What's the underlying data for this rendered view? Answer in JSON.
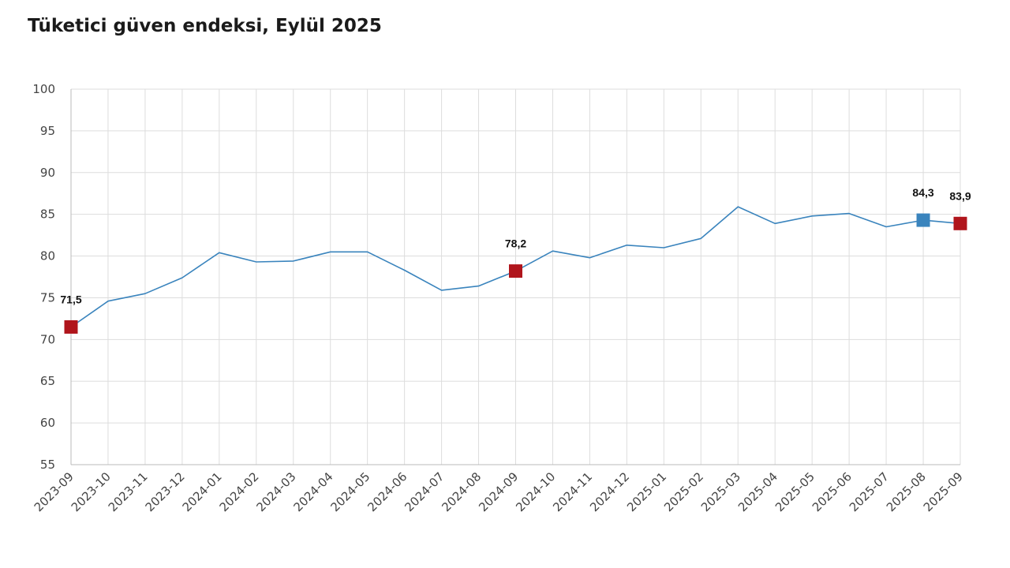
{
  "chart_data": {
    "type": "line",
    "title": "Tüketici güven endeksi, Eylül 2025",
    "categories": [
      "2023-09",
      "2023-10",
      "2023-11",
      "2023-12",
      "2024-01",
      "2024-02",
      "2024-03",
      "2024-04",
      "2024-05",
      "2024-06",
      "2024-07",
      "2024-08",
      "2024-09",
      "2024-10",
      "2024-11",
      "2024-12",
      "2025-01",
      "2025-02",
      "2025-03",
      "2025-04",
      "2025-05",
      "2025-06",
      "2025-07",
      "2025-08",
      "2025-09"
    ],
    "series": [
      {
        "values": [
          71.5,
          74.6,
          75.5,
          77.4,
          80.4,
          79.3,
          79.4,
          80.5,
          80.5,
          78.3,
          75.9,
          76.4,
          78.2,
          80.6,
          79.8,
          81.3,
          81.0,
          82.1,
          85.9,
          83.9,
          84.8,
          85.1,
          83.5,
          84.3,
          83.9
        ],
        "color": "#3a84bd"
      }
    ],
    "ylim": [
      55,
      100
    ],
    "yticks": [
      "55",
      "60",
      "65",
      "70",
      "75",
      "80",
      "85",
      "90",
      "95",
      "100"
    ],
    "grid": true,
    "highlights": [
      {
        "category": "2023-09",
        "value": 71.5,
        "label": "71,5",
        "color": "#b0151c"
      },
      {
        "category": "2024-09",
        "value": 78.2,
        "label": "78,2",
        "color": "#b0151c"
      },
      {
        "category": "2025-08",
        "value": 84.3,
        "label": "84,3",
        "color": "#3a84bd"
      },
      {
        "category": "2025-09",
        "value": 83.9,
        "label": "83,9",
        "color": "#b0151c"
      }
    ]
  }
}
